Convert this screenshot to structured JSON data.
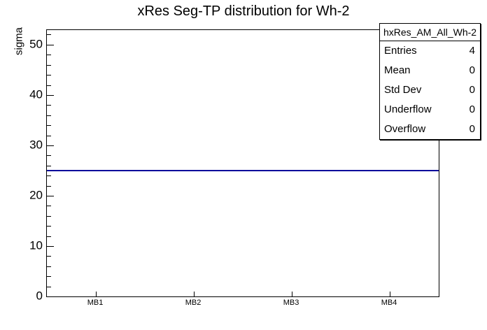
{
  "page": {
    "background": "#ffffff",
    "frame_border_color": "#000000"
  },
  "chart_data": {
    "type": "line",
    "title": "xRes Seg-TP distribution for Wh-2",
    "xlabel": "",
    "ylabel": "sigma",
    "categories": [
      "MB1",
      "MB2",
      "MB3",
      "MB4"
    ],
    "series": [
      {
        "name": "hxRes_AM_All_Wh-2",
        "values": [
          25,
          25,
          25,
          25
        ]
      }
    ],
    "ylim": [
      0,
      52.9
    ],
    "y_major_ticks": [
      0,
      10,
      20,
      30,
      40,
      50
    ],
    "y_minor_step": 2,
    "grid": false,
    "legend_position": "none",
    "line_color": "#00009b",
    "stats_box": {
      "title": "hxRes_AM_All_Wh-2",
      "rows": [
        {
          "label": "Entries",
          "value": "4"
        },
        {
          "label": "Mean",
          "value": "0"
        },
        {
          "label": "Std Dev",
          "value": "0"
        },
        {
          "label": "Underflow",
          "value": "0"
        },
        {
          "label": "Overflow",
          "value": "0"
        }
      ]
    }
  }
}
